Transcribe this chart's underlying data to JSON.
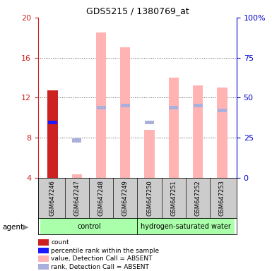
{
  "title": "GDS5215 / 1380769_at",
  "samples": [
    "GSM647246",
    "GSM647247",
    "GSM647248",
    "GSM647249",
    "GSM647250",
    "GSM647251",
    "GSM647252",
    "GSM647253"
  ],
  "ylim_left": [
    4,
    20
  ],
  "ylim_right": [
    0,
    100
  ],
  "yticks_left": [
    4,
    8,
    12,
    16,
    20
  ],
  "yticks_right": [
    0,
    25,
    50,
    75,
    100
  ],
  "yticklabels_right": [
    "0",
    "25",
    "50",
    "75",
    "100%"
  ],
  "bar_color_present": "#cc2222",
  "bar_color_absent": "#ffb3b3",
  "rank_color_present": "#1a1aff",
  "rank_color_absent": "#aab0dd",
  "value_bars": [
    {
      "x": 0,
      "value": 12.7,
      "rank": 9.5,
      "absent": false
    },
    {
      "x": 1,
      "value": 4.3,
      "rank": 7.7,
      "absent": true
    },
    {
      "x": 2,
      "value": 18.5,
      "rank": 11.0,
      "absent": true
    },
    {
      "x": 3,
      "value": 17.0,
      "rank": 11.2,
      "absent": true
    },
    {
      "x": 4,
      "value": 8.8,
      "rank": 9.5,
      "absent": true
    },
    {
      "x": 5,
      "value": 14.0,
      "rank": 11.0,
      "absent": true
    },
    {
      "x": 6,
      "value": 13.2,
      "rank": 11.2,
      "absent": true
    },
    {
      "x": 7,
      "value": 13.0,
      "rank": 10.7,
      "absent": true
    }
  ],
  "rank_square_size": 0.38,
  "groups_info": [
    {
      "label": "control",
      "start": 0,
      "end": 3,
      "color": "#aaffaa"
    },
    {
      "label": "hydrogen-saturated water",
      "start": 4,
      "end": 7,
      "color": "#aaffaa"
    }
  ],
  "legend_items": [
    {
      "label": "count",
      "color": "#cc2222"
    },
    {
      "label": "percentile rank within the sample",
      "color": "#1a1aff"
    },
    {
      "label": "value, Detection Call = ABSENT",
      "color": "#ffb3b3"
    },
    {
      "label": "rank, Detection Call = ABSENT",
      "color": "#aab0dd"
    }
  ],
  "bar_width": 0.42,
  "left_axis_color": "#cc2222",
  "right_axis_color": "#0000cc",
  "grid_color": "#555555",
  "bg_color": "#ffffff",
  "agent_label": "agent"
}
